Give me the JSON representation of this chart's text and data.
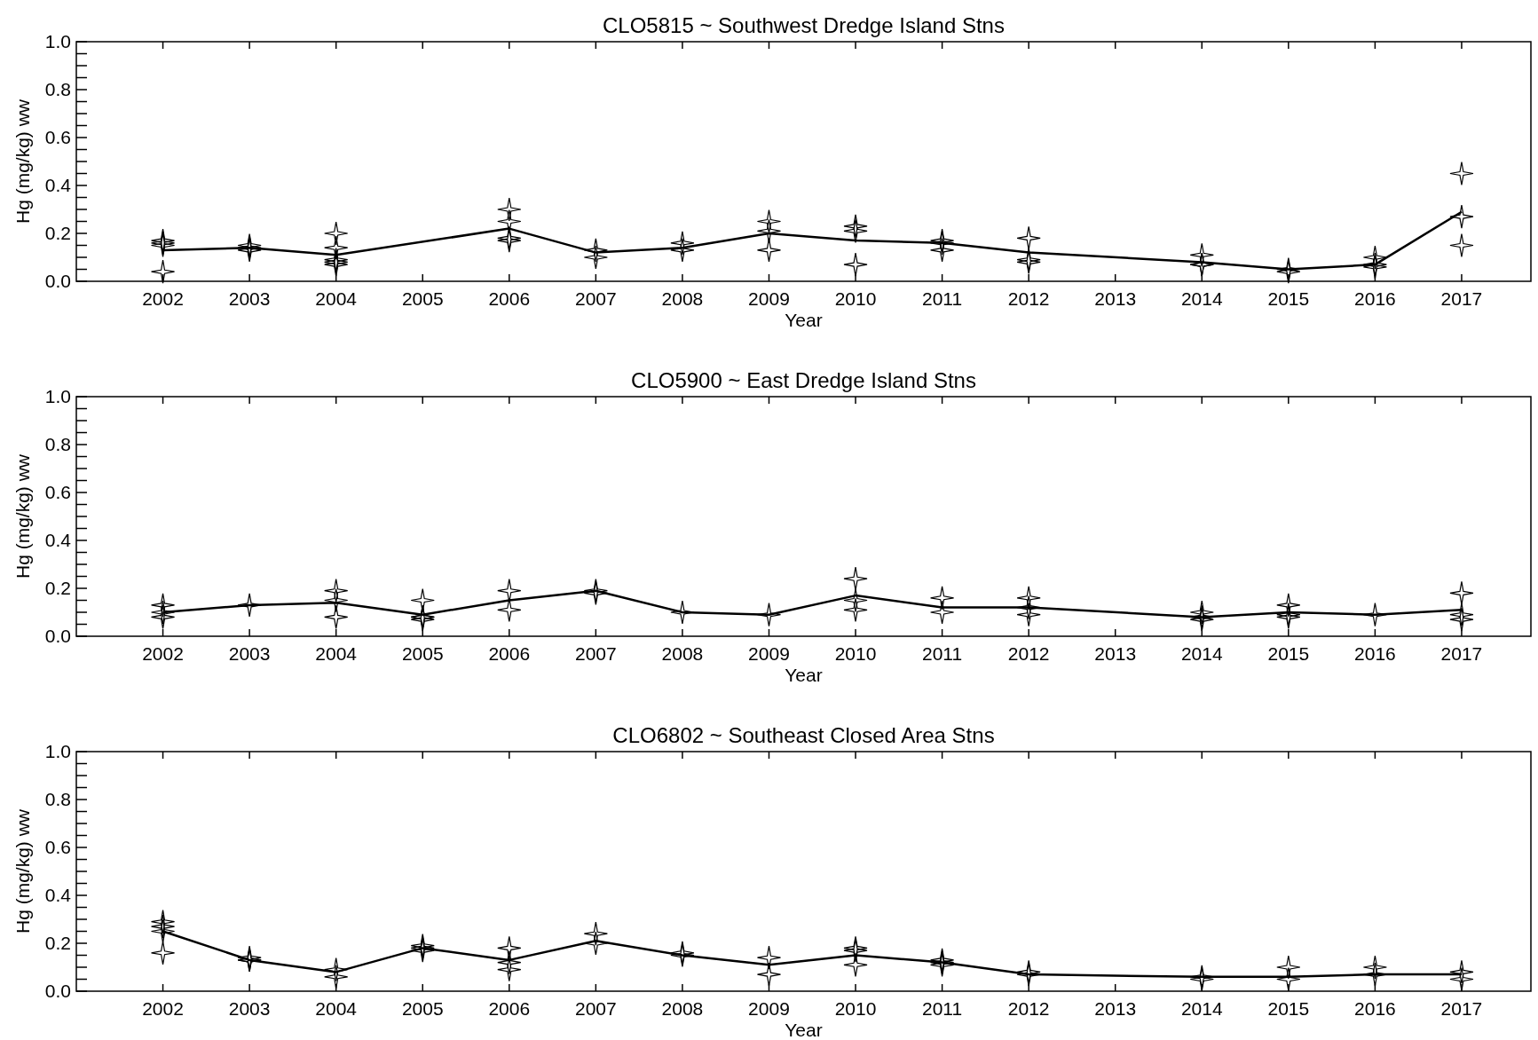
{
  "chart_data": [
    {
      "type": "line",
      "title": "CLO5815 ~ Southwest Dredge Island Stns",
      "xlabel": "Year",
      "ylabel": "Hg (mg/kg) ww",
      "xlim": [
        2001,
        2017.8
      ],
      "xticks": [
        2002,
        2003,
        2004,
        2005,
        2006,
        2007,
        2008,
        2009,
        2010,
        2011,
        2012,
        2013,
        2014,
        2015,
        2016,
        2017
      ],
      "ylim": [
        0,
        1
      ],
      "yticks": [
        {
          "value": 0,
          "label": "0.0"
        },
        {
          "value": 0.05,
          "label": null
        },
        {
          "value": 0.1,
          "label": null
        },
        {
          "value": 0.15,
          "label": null
        },
        {
          "value": 0.2,
          "label": "0.2"
        },
        {
          "value": 0.25,
          "label": null
        },
        {
          "value": 0.3,
          "label": null
        },
        {
          "value": 0.35,
          "label": null
        },
        {
          "value": 0.4,
          "label": "0.4"
        },
        {
          "value": 0.45,
          "label": null
        },
        {
          "value": 0.5,
          "label": null
        },
        {
          "value": 0.55,
          "label": null
        },
        {
          "value": 0.6,
          "label": "0.6"
        },
        {
          "value": 0.65,
          "label": null
        },
        {
          "value": 0.7,
          "label": null
        },
        {
          "value": 0.75,
          "label": null
        },
        {
          "value": 0.8,
          "label": "0.8"
        },
        {
          "value": 0.85,
          "label": null
        },
        {
          "value": 0.9,
          "label": null
        },
        {
          "value": 0.95,
          "label": null
        },
        {
          "value": 1,
          "label": "1.0"
        }
      ],
      "grid": false,
      "series": [
        {
          "color": "#000000",
          "marker": "none",
          "x": [
            2002,
            2003,
            2004,
            2006,
            2007,
            2008,
            2009,
            2010,
            2011,
            2012,
            2014,
            2015,
            2016,
            2017
          ],
          "values": [
            0.13,
            0.14,
            0.11,
            0.22,
            0.12,
            0.14,
            0.2,
            0.17,
            0.16,
            0.12,
            0.08,
            0.05,
            0.07,
            0.29
          ]
        },
        {
          "type": "scatter",
          "color": "#000000",
          "marker": "star",
          "x": [
            2002,
            2002,
            2002,
            2002,
            2003,
            2003,
            2003,
            2004,
            2004,
            2004,
            2004,
            2004,
            2006,
            2006,
            2006,
            2006,
            2007,
            2007,
            2008,
            2008,
            2009,
            2009,
            2009,
            2010,
            2010,
            2010,
            2011,
            2011,
            2011,
            2012,
            2012,
            2012,
            2014,
            2014,
            2014,
            2015,
            2015,
            2016,
            2016,
            2016,
            2017,
            2017,
            2017
          ],
          "values": [
            0.17,
            0.16,
            0.15,
            0.04,
            0.15,
            0.13,
            0.14,
            0.2,
            0.14,
            0.09,
            0.08,
            0.07,
            0.3,
            0.25,
            0.18,
            0.17,
            0.13,
            0.1,
            0.16,
            0.13,
            0.25,
            0.21,
            0.13,
            0.23,
            0.21,
            0.07,
            0.17,
            0.16,
            0.13,
            0.18,
            0.09,
            0.08,
            0.11,
            0.07,
            0.07,
            0.05,
            0.04,
            0.1,
            0.07,
            0.06,
            0.45,
            0.27,
            0.15
          ]
        }
      ]
    },
    {
      "type": "line",
      "title": "CLO5900 ~ East Dredge Island Stns",
      "xlabel": "Year",
      "ylabel": "Hg (mg/kg) ww",
      "xlim": [
        2001,
        2017.8
      ],
      "xticks": [
        2002,
        2003,
        2004,
        2005,
        2006,
        2007,
        2008,
        2009,
        2010,
        2011,
        2012,
        2013,
        2014,
        2015,
        2016,
        2017
      ],
      "ylim": [
        0,
        1
      ],
      "yticks": [
        {
          "value": 0,
          "label": "0.0"
        },
        {
          "value": 0.05,
          "label": null
        },
        {
          "value": 0.1,
          "label": null
        },
        {
          "value": 0.15,
          "label": null
        },
        {
          "value": 0.2,
          "label": "0.2"
        },
        {
          "value": 0.25,
          "label": null
        },
        {
          "value": 0.3,
          "label": null
        },
        {
          "value": 0.35,
          "label": null
        },
        {
          "value": 0.4,
          "label": "0.4"
        },
        {
          "value": 0.45,
          "label": null
        },
        {
          "value": 0.5,
          "label": null
        },
        {
          "value": 0.55,
          "label": null
        },
        {
          "value": 0.6,
          "label": "0.6"
        },
        {
          "value": 0.65,
          "label": null
        },
        {
          "value": 0.7,
          "label": null
        },
        {
          "value": 0.75,
          "label": null
        },
        {
          "value": 0.8,
          "label": "0.8"
        },
        {
          "value": 0.85,
          "label": null
        },
        {
          "value": 0.9,
          "label": null
        },
        {
          "value": 0.95,
          "label": null
        },
        {
          "value": 1,
          "label": "1.0"
        }
      ],
      "grid": false,
      "series": [
        {
          "color": "#000000",
          "marker": "none",
          "x": [
            2002,
            2003,
            2004,
            2005,
            2006,
            2007,
            2008,
            2009,
            2010,
            2011,
            2012,
            2014,
            2015,
            2016,
            2017
          ],
          "values": [
            0.1,
            0.13,
            0.14,
            0.09,
            0.15,
            0.19,
            0.1,
            0.09,
            0.17,
            0.12,
            0.12,
            0.08,
            0.1,
            0.09,
            0.11
          ]
        },
        {
          "type": "scatter",
          "color": "#000000",
          "marker": "star",
          "x": [
            2002,
            2002,
            2002,
            2003,
            2004,
            2004,
            2004,
            2005,
            2005,
            2005,
            2005,
            2006,
            2006,
            2007,
            2007,
            2008,
            2009,
            2010,
            2010,
            2010,
            2011,
            2011,
            2012,
            2012,
            2012,
            2014,
            2014,
            2014,
            2015,
            2015,
            2015,
            2016,
            2017,
            2017,
            2017
          ],
          "values": [
            0.13,
            0.1,
            0.08,
            0.13,
            0.19,
            0.15,
            0.08,
            0.15,
            0.08,
            0.08,
            0.07,
            0.19,
            0.11,
            0.19,
            0.18,
            0.1,
            0.09,
            0.24,
            0.15,
            0.11,
            0.16,
            0.1,
            0.16,
            0.12,
            0.09,
            0.1,
            0.08,
            0.07,
            0.13,
            0.09,
            0.08,
            0.09,
            0.18,
            0.09,
            0.07
          ]
        }
      ]
    },
    {
      "type": "line",
      "title": "CLO6802 ~ Southeast Closed Area Stns",
      "xlabel": "Year",
      "ylabel": "Hg (mg/kg) ww",
      "xlim": [
        2001,
        2017.8
      ],
      "xticks": [
        2002,
        2003,
        2004,
        2005,
        2006,
        2007,
        2008,
        2009,
        2010,
        2011,
        2012,
        2013,
        2014,
        2015,
        2016,
        2017
      ],
      "ylim": [
        0,
        1
      ],
      "yticks": [
        {
          "value": 0,
          "label": "0.0"
        },
        {
          "value": 0.05,
          "label": null
        },
        {
          "value": 0.1,
          "label": null
        },
        {
          "value": 0.15,
          "label": null
        },
        {
          "value": 0.2,
          "label": "0.2"
        },
        {
          "value": 0.25,
          "label": null
        },
        {
          "value": 0.3,
          "label": null
        },
        {
          "value": 0.35,
          "label": null
        },
        {
          "value": 0.4,
          "label": "0.4"
        },
        {
          "value": 0.45,
          "label": null
        },
        {
          "value": 0.5,
          "label": null
        },
        {
          "value": 0.55,
          "label": null
        },
        {
          "value": 0.6,
          "label": "0.6"
        },
        {
          "value": 0.65,
          "label": null
        },
        {
          "value": 0.7,
          "label": null
        },
        {
          "value": 0.75,
          "label": null
        },
        {
          "value": 0.8,
          "label": "0.8"
        },
        {
          "value": 0.85,
          "label": null
        },
        {
          "value": 0.9,
          "label": null
        },
        {
          "value": 0.95,
          "label": null
        },
        {
          "value": 1,
          "label": "1.0"
        }
      ],
      "grid": false,
      "series": [
        {
          "color": "#000000",
          "marker": "none",
          "x": [
            2002,
            2003,
            2004,
            2005,
            2006,
            2007,
            2008,
            2009,
            2010,
            2011,
            2012,
            2014,
            2015,
            2016,
            2017
          ],
          "values": [
            0.25,
            0.13,
            0.08,
            0.18,
            0.13,
            0.21,
            0.15,
            0.11,
            0.15,
            0.12,
            0.07,
            0.06,
            0.06,
            0.07,
            0.07
          ]
        },
        {
          "type": "scatter",
          "color": "#000000",
          "marker": "star",
          "x": [
            2002,
            2002,
            2002,
            2002,
            2003,
            2003,
            2003,
            2004,
            2004,
            2005,
            2005,
            2005,
            2006,
            2006,
            2006,
            2007,
            2007,
            2008,
            2008,
            2009,
            2009,
            2010,
            2010,
            2010,
            2011,
            2011,
            2011,
            2012,
            2012,
            2014,
            2014,
            2015,
            2015,
            2016,
            2016,
            2017,
            2017
          ],
          "values": [
            0.29,
            0.27,
            0.25,
            0.16,
            0.14,
            0.13,
            0.13,
            0.09,
            0.06,
            0.19,
            0.18,
            0.17,
            0.18,
            0.12,
            0.09,
            0.24,
            0.2,
            0.16,
            0.15,
            0.14,
            0.07,
            0.18,
            0.17,
            0.11,
            0.13,
            0.12,
            0.11,
            0.08,
            0.07,
            0.06,
            0.05,
            0.1,
            0.05,
            0.1,
            0.07,
            0.08,
            0.05
          ]
        }
      ]
    }
  ]
}
